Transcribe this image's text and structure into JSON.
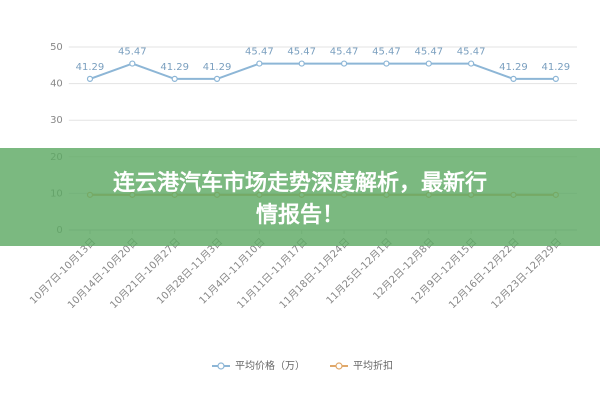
{
  "chart_data": {
    "type": "line",
    "categories": [
      "10月7日-10月13日",
      "10月14日-10月20日",
      "10月21日-10月27日",
      "10月28日-11月3日",
      "11月4日-11月10日",
      "11月11日-11月17日",
      "11月18日-11月24日",
      "11月25日-12月1日",
      "12月2日-12月8日",
      "12月9日-12月15日",
      "12月16日-12月22日",
      "12月23日-12月29日"
    ],
    "series": [
      {
        "name": "平均价格（万）",
        "color": "#8db6d6",
        "values": [
          41.29,
          45.47,
          41.29,
          41.29,
          45.47,
          45.47,
          45.47,
          45.47,
          45.47,
          45.47,
          41.29,
          41.29
        ]
      },
      {
        "name": "平均折扣",
        "color": "#e0a86a",
        "values": [
          9.6,
          9.6,
          9.6,
          9.6,
          9.6,
          9.6,
          9.6,
          9.6,
          9.6,
          9.6,
          9.6,
          9.6
        ]
      }
    ],
    "ylim": [
      0,
      50
    ],
    "yticks": [
      0,
      10,
      20,
      30,
      40,
      50
    ],
    "grid": true
  },
  "overlay_title": [
    "连云港汽车市场走势深度解析，最新行",
    "情报告！"
  ]
}
